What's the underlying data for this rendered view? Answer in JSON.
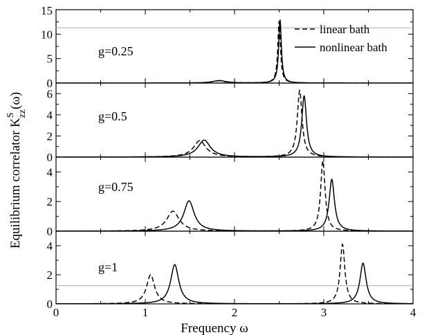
{
  "figure": {
    "xlabel": "Frequency ω",
    "ylabel_main": "Equilibrium correlator K",
    "ylabel_sup": "S",
    "ylabel_sub": "zz",
    "ylabel_arg": "(ω)"
  },
  "legend": {
    "items": [
      {
        "label": "linear bath",
        "style": "dashed"
      },
      {
        "label": "nonlinear bath",
        "style": "solid"
      }
    ]
  },
  "chart_data": [
    {
      "type": "line",
      "panel_label": "g=0.25",
      "xlim": [
        0,
        4
      ],
      "ylim": [
        0,
        15
      ],
      "xticks": [
        0,
        1,
        2,
        3,
        4
      ],
      "yticks": [
        0,
        5,
        10,
        15
      ],
      "hline": 11.3,
      "series": [
        {
          "name": "linear bath",
          "style": "dashed",
          "peaks": [
            {
              "center": 1.82,
              "height": 0.45,
              "width": 0.09
            },
            {
              "center": 2.5,
              "height": 12.7,
              "width": 0.018
            }
          ]
        },
        {
          "name": "nonlinear bath",
          "style": "solid",
          "peaks": [
            {
              "center": 1.83,
              "height": 0.5,
              "width": 0.09
            },
            {
              "center": 2.51,
              "height": 13.0,
              "width": 0.018
            }
          ]
        }
      ]
    },
    {
      "type": "line",
      "panel_label": "g=0.5",
      "xlim": [
        0,
        4
      ],
      "ylim": [
        0,
        7
      ],
      "xticks": [
        0,
        1,
        2,
        3,
        4
      ],
      "yticks": [
        0,
        2,
        4,
        6
      ],
      "series": [
        {
          "name": "linear bath",
          "style": "dashed",
          "peaks": [
            {
              "center": 1.61,
              "height": 1.55,
              "width": 0.085
            },
            {
              "center": 2.73,
              "height": 6.3,
              "width": 0.032
            }
          ]
        },
        {
          "name": "nonlinear bath",
          "style": "solid",
          "peaks": [
            {
              "center": 1.66,
              "height": 1.6,
              "width": 0.085
            },
            {
              "center": 2.78,
              "height": 5.8,
              "width": 0.032
            }
          ]
        }
      ]
    },
    {
      "type": "line",
      "panel_label": "g=0.75",
      "xlim": [
        0,
        4
      ],
      "ylim": [
        0,
        5
      ],
      "xticks": [
        0,
        1,
        2,
        3,
        4
      ],
      "yticks": [
        0,
        2,
        4
      ],
      "series": [
        {
          "name": "linear bath",
          "style": "dashed",
          "peaks": [
            {
              "center": 1.31,
              "height": 1.35,
              "width": 0.085
            },
            {
              "center": 2.99,
              "height": 4.75,
              "width": 0.03
            }
          ]
        },
        {
          "name": "nonlinear bath",
          "style": "solid",
          "peaks": [
            {
              "center": 1.49,
              "height": 2.05,
              "width": 0.07
            },
            {
              "center": 3.09,
              "height": 3.5,
              "width": 0.036
            }
          ]
        }
      ]
    },
    {
      "type": "line",
      "panel_label": "g=1",
      "xlim": [
        0,
        4
      ],
      "ylim": [
        0,
        5
      ],
      "xticks": [
        0,
        1,
        2,
        3,
        4
      ],
      "yticks": [
        0,
        2,
        4
      ],
      "hline": 1.25,
      "series": [
        {
          "name": "linear bath",
          "style": "dashed",
          "peaks": [
            {
              "center": 1.06,
              "height": 2.0,
              "width": 0.055
            },
            {
              "center": 3.21,
              "height": 4.1,
              "width": 0.032
            }
          ]
        },
        {
          "name": "nonlinear bath",
          "style": "solid",
          "peaks": [
            {
              "center": 1.33,
              "height": 2.7,
              "width": 0.055
            },
            {
              "center": 3.44,
              "height": 2.8,
              "width": 0.042
            }
          ]
        }
      ]
    }
  ]
}
